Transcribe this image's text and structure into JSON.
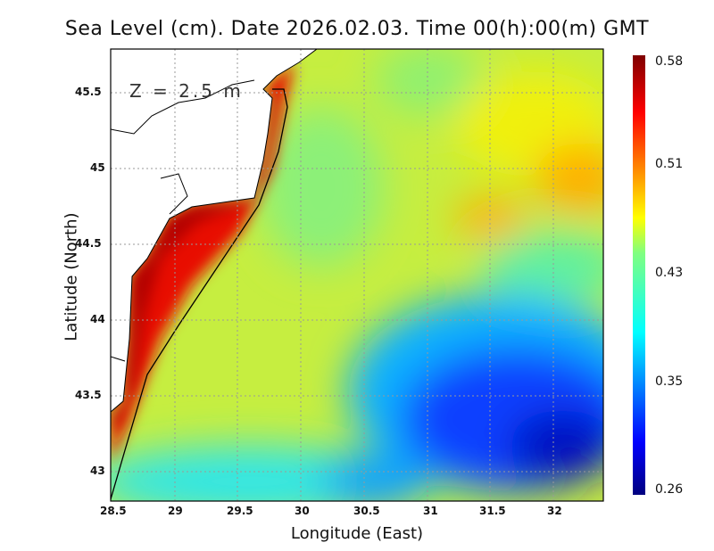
{
  "title": "Sea Level (cm). Date 2026.02.03. Time 00(h):00(m) GMT",
  "xlabel": "Longitude (East)",
  "ylabel": "Latitude (North)",
  "depth_label": "Z = 2.5 m",
  "x_ticks": [
    "28.5",
    "29",
    "29.5",
    "30",
    "30.5",
    "31",
    "31.5",
    "32"
  ],
  "y_ticks": [
    "45.5",
    "45",
    "44.5",
    "44",
    "43.5",
    "43"
  ],
  "colorbar": {
    "ticks": [
      "0.58",
      "0.51",
      "0.43",
      "0.35",
      "0.26"
    ],
    "min": 0.26,
    "max": 0.58,
    "colormap": "jet"
  },
  "chart_data": {
    "type": "heatmap",
    "variable": "Sea Level",
    "xlim": [
      28.5,
      32.4
    ],
    "ylim": [
      42.8,
      45.8
    ],
    "value_range": [
      0.26,
      0.58
    ]
  }
}
